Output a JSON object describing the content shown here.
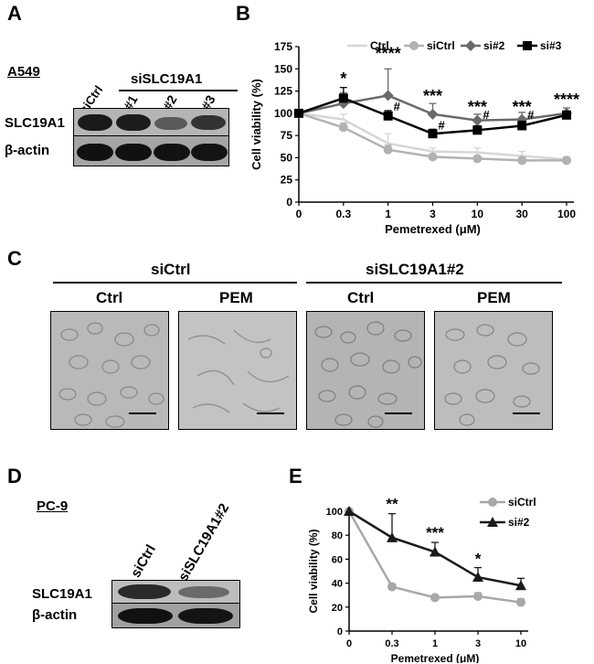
{
  "panels": {
    "A": "A",
    "B": "B",
    "C": "C",
    "D": "D",
    "E": "E"
  },
  "panelA": {
    "cell_line": "A549",
    "lane_labels": [
      "siCtrl",
      "#1",
      "#2",
      "#3"
    ],
    "group_label": "siSLC19A1",
    "row_labels": [
      "SLC19A1",
      "β-actin"
    ]
  },
  "panelC": {
    "group_labels": [
      "siCtrl",
      "siSLC19A1#2"
    ],
    "image_labels": [
      "Ctrl",
      "PEM",
      "Ctrl",
      "PEM"
    ]
  },
  "panelD": {
    "cell_line": "PC-9",
    "lane_labels": [
      "siCtrl",
      "siSLC19A1#2"
    ],
    "row_labels": [
      "SLC19A1",
      "β-actin"
    ]
  },
  "chart_data": [
    {
      "panel": "B",
      "type": "line",
      "ylabel": "Cell viability (%)",
      "xlabel": "Pemetrexed (μM)",
      "categories": [
        "0",
        "0.3",
        "1",
        "3",
        "10",
        "30",
        "100"
      ],
      "ylim": [
        0,
        175
      ],
      "yticks": [
        0,
        25,
        50,
        75,
        100,
        125,
        150,
        175
      ],
      "legend_position": "top",
      "series": [
        {
          "name": "Ctrl",
          "color": "#d6d6d6",
          "marker": "none",
          "values": [
            100,
            93,
            66,
            57,
            56,
            52,
            48
          ],
          "errors": [
            0,
            6,
            11,
            4,
            5,
            5,
            3
          ]
        },
        {
          "name": "siCtrl",
          "color": "#b2b2b2",
          "marker": "circle",
          "values": [
            100,
            84,
            59,
            51,
            49,
            47,
            47
          ],
          "errors": [
            0,
            5,
            5,
            3,
            3,
            3,
            3
          ]
        },
        {
          "name": "si#2",
          "color": "#6a6a6a",
          "marker": "diamond",
          "values": [
            100,
            111,
            120,
            99,
            92,
            93,
            100
          ],
          "errors": [
            0,
            12,
            30,
            12,
            7,
            8,
            6
          ]
        },
        {
          "name": "si#3",
          "color": "#000000",
          "marker": "square",
          "values": [
            100,
            117,
            97,
            77,
            81,
            86,
            98
          ],
          "errors": [
            0,
            12,
            6,
            5,
            5,
            5,
            4
          ]
        }
      ],
      "annotations": [
        {
          "x": "0.3",
          "text": "*",
          "y": 133
        },
        {
          "x": "1",
          "text": "****",
          "y": 161
        },
        {
          "x": "1",
          "text": "#",
          "y": 107
        },
        {
          "x": "3",
          "text": "***",
          "y": 113
        },
        {
          "x": "3",
          "text": "#",
          "y": 86
        },
        {
          "x": "10",
          "text": "***",
          "y": 101
        },
        {
          "x": "10",
          "text": "#",
          "y": 98
        },
        {
          "x": "30",
          "text": "***",
          "y": 101
        },
        {
          "x": "30",
          "text": "#",
          "y": 98
        },
        {
          "x": "100",
          "text": "****",
          "y": 109
        }
      ]
    },
    {
      "panel": "E",
      "type": "line",
      "ylabel": "Cell viability (%)",
      "xlabel": "Pemetrexed (μM)",
      "categories": [
        "0",
        "0.3",
        "1",
        "3",
        "10"
      ],
      "ylim": [
        0,
        100
      ],
      "yticks": [
        0,
        20,
        40,
        60,
        80,
        100
      ],
      "legend_position": "top-right",
      "series": [
        {
          "name": "siCtrl",
          "color": "#a8a8a8",
          "marker": "circle",
          "values": [
            100,
            37,
            28,
            29,
            24
          ],
          "errors": [
            0,
            2,
            2,
            3,
            3
          ]
        },
        {
          "name": "si#2",
          "color": "#1a1a1a",
          "marker": "triangle",
          "values": [
            100,
            78,
            66,
            45,
            38
          ],
          "errors": [
            0,
            20,
            8,
            8,
            6
          ]
        }
      ],
      "annotations": [
        {
          "x": "0.3",
          "text": "**",
          "y": 102
        },
        {
          "x": "1",
          "text": "***",
          "y": 78
        },
        {
          "x": "3",
          "text": "*",
          "y": 56
        }
      ]
    }
  ]
}
